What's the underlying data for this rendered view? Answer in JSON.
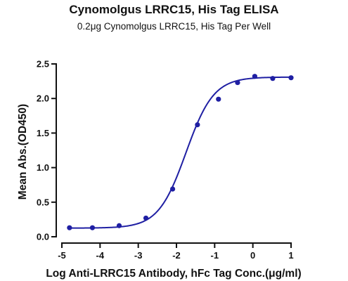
{
  "chart_data": {
    "type": "scatter",
    "title": "Cynomolgus LRRC15, His Tag ELISA",
    "subtitle": "0.2μg Cynomolgus LRRC15, His Tag Per Well",
    "xlabel": "Log Anti-LRRC15 Antibody, hFc Tag Conc.(μg/ml)",
    "ylabel": "Mean Abs.(OD450)",
    "xlim": [
      -5,
      1
    ],
    "ylim": [
      0,
      2.5
    ],
    "x_ticks": [
      "-5",
      "-4",
      "-3",
      "-2",
      "-1",
      "0",
      "1"
    ],
    "y_ticks": [
      "0.0",
      "0.5",
      "1.0",
      "1.5",
      "2.0",
      "2.5"
    ],
    "grid": false,
    "color": "#1f1fa3",
    "points": {
      "x": [
        -4.8,
        -4.2,
        -3.5,
        -2.8,
        -2.1,
        -1.45,
        -0.9,
        -0.4,
        0.05,
        0.52,
        1.0
      ],
      "y": [
        0.13,
        0.13,
        0.16,
        0.27,
        0.69,
        1.62,
        1.99,
        2.23,
        2.32,
        2.29,
        2.3
      ]
    },
    "fit_curve": {
      "bottom": 0.125,
      "top": 2.31,
      "logEC50": -1.75,
      "hill_slope": 1.2
    }
  }
}
